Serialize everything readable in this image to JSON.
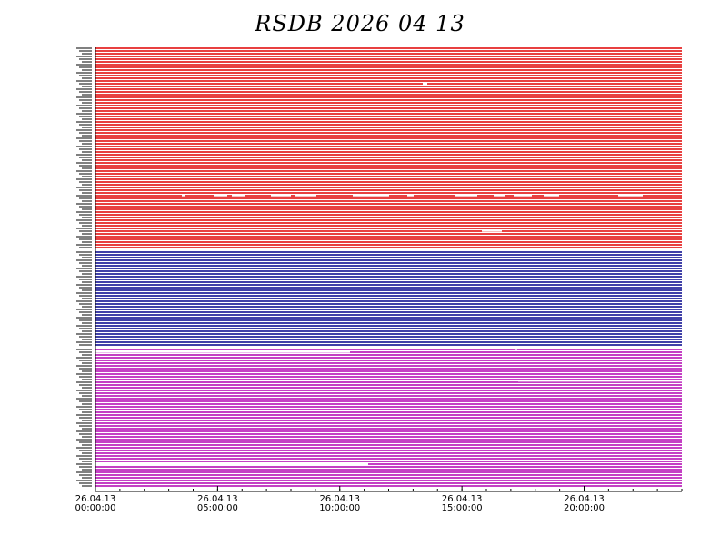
{
  "chart_data": {
    "type": "availability",
    "title": "RSDB  2026  04  13",
    "xlim": [
      0,
      24
    ],
    "xticks": [
      {
        "value": 0,
        "label": "26.04.13\n00:00:00"
      },
      {
        "value": 5,
        "label": "26.04.13\n05:00:00"
      },
      {
        "value": 10,
        "label": "26.04.13\n10:00:00"
      },
      {
        "value": 15,
        "label": "26.04.13\n15:00:00"
      },
      {
        "value": 20,
        "label": "26.04.13\n20:00:00"
      }
    ],
    "series": [
      {
        "color": "#e00000"
      },
      {
        "color": "#00008b"
      },
      {
        "color": "#b000b0"
      }
    ]
  }
}
